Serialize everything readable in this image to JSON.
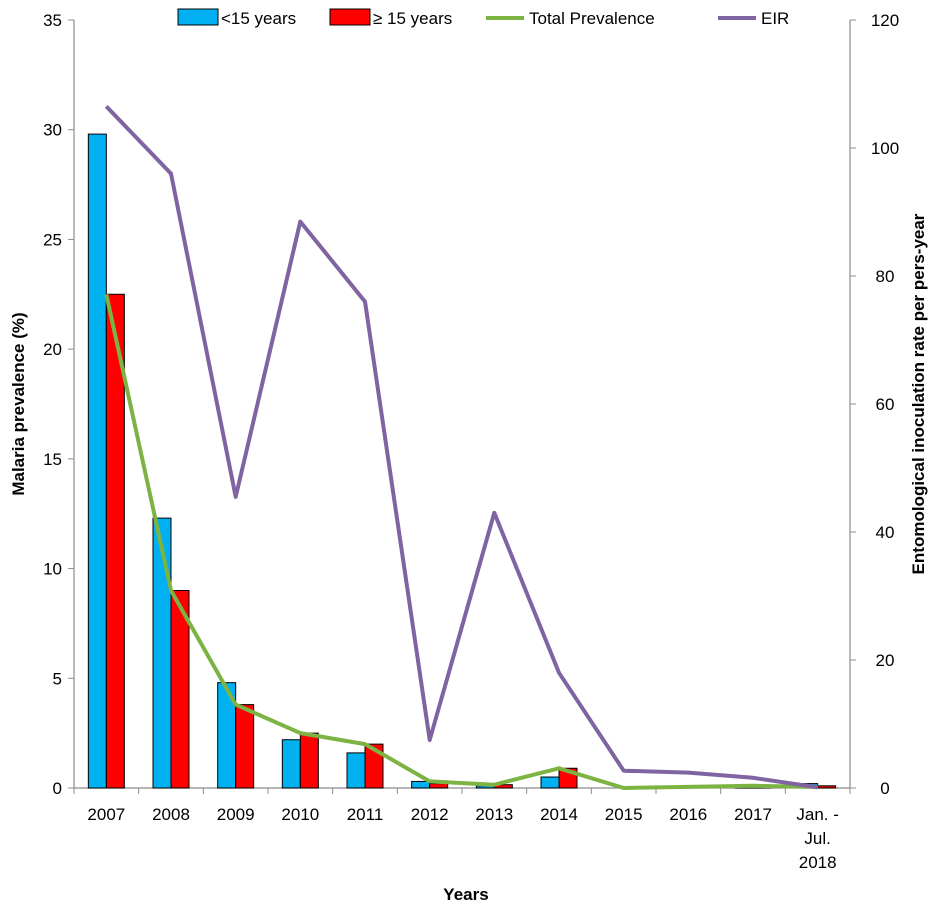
{
  "chart_data": {
    "type": "bar",
    "categories": [
      "2007",
      "2008",
      "2009",
      "2010",
      "2011",
      "2012",
      "2013",
      "2014",
      "2015",
      "2016",
      "2017",
      [
        "Jan. -",
        "Jul.",
        "2018"
      ]
    ],
    "series": [
      {
        "name": "<15 years",
        "kind": "bar",
        "axis": "left",
        "color": "#00B0F0",
        "values": [
          29.8,
          12.3,
          4.8,
          2.2,
          1.6,
          0.3,
          0.1,
          0.5,
          0.0,
          0.05,
          0.05,
          0.2
        ]
      },
      {
        "name": "≥ 15 years",
        "kind": "bar",
        "axis": "left",
        "color": "#FF0000",
        "values": [
          22.5,
          9.0,
          3.8,
          2.5,
          2.0,
          0.2,
          0.15,
          0.9,
          0.0,
          0.05,
          0.05,
          0.1
        ]
      },
      {
        "name": "Total Prevalence",
        "kind": "line",
        "axis": "left",
        "color": "#7CB342",
        "values": [
          22.5,
          9.0,
          3.8,
          2.5,
          2.0,
          0.3,
          0.15,
          0.9,
          0.0,
          0.05,
          0.1,
          0.05
        ]
      },
      {
        "name": "EIR",
        "kind": "line",
        "axis": "right",
        "color": "#8064A2",
        "values": [
          106.5,
          96.0,
          45.5,
          88.5,
          76.0,
          7.5,
          43.0,
          18.0,
          2.7,
          2.4,
          1.6,
          0.1
        ]
      }
    ],
    "xlabel": "Years",
    "ylabel": "Malaria prevalence (%)",
    "y2label": "Entomological inoculation rate per pers-year",
    "ylim": [
      0,
      35
    ],
    "yticks": [
      0,
      5,
      10,
      15,
      20,
      25,
      30,
      35
    ],
    "y2lim": [
      0,
      120
    ],
    "y2ticks": [
      0,
      20,
      40,
      60,
      80,
      100,
      120
    ],
    "legend_position": "top",
    "grid": false
  }
}
